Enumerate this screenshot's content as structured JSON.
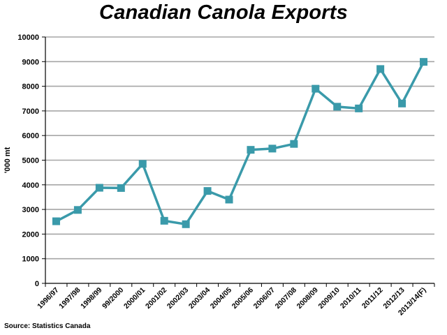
{
  "chart_data": {
    "type": "line",
    "title": "Canadian Canola Exports",
    "xlabel": "",
    "ylabel": "'000 mt",
    "source": "Source: Statistics Canada",
    "categories": [
      "1996/97",
      "1997/98",
      "1998/99",
      "99/2000",
      "2000/01",
      "2001/02",
      "2002/03",
      "2003/04",
      "2004/05",
      "2005/06",
      "2006/07",
      "2007/08",
      "2008/09",
      "2009/10",
      "2010/11",
      "2011/12",
      "2012/13",
      "2013/14(F)"
    ],
    "values": [
      2520,
      2980,
      3880,
      3870,
      4850,
      2540,
      2400,
      3750,
      3400,
      5420,
      5470,
      5660,
      7900,
      7170,
      7100,
      8700,
      7300,
      8990
    ],
    "ylim": [
      0,
      10000
    ],
    "yticks": [
      0,
      1000,
      2000,
      3000,
      4000,
      5000,
      6000,
      7000,
      8000,
      9000,
      10000
    ],
    "grid": "horizontal",
    "legend": "none",
    "line_color": "#3a9aaa",
    "marker": "square"
  }
}
